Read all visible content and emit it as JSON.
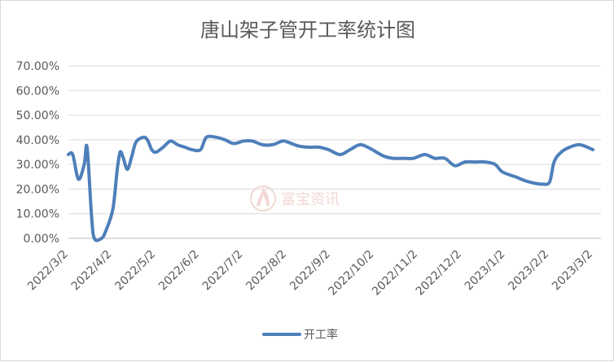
{
  "chart_data": {
    "type": "line",
    "title": "唐山架子管开工率统计图",
    "x_ticks": [
      "2022/3/2",
      "2022/4/2",
      "2022/5/2",
      "2022/6/2",
      "2022/7/2",
      "2022/8/2",
      "2022/9/2",
      "2022/10/2",
      "2022/11/2",
      "2022/12/2",
      "2023/1/2",
      "2023/2/2",
      "2023/3/2"
    ],
    "y_ticks": [
      "0.00%",
      "10.00%",
      "20.00%",
      "30.00%",
      "40.00%",
      "50.00%",
      "60.00%",
      "70.00%"
    ],
    "ylim": [
      0,
      70
    ],
    "y_unit": "percent",
    "grid": true,
    "legend_position": "bottom",
    "watermark": "富宝资讯",
    "series": [
      {
        "name": "开工率",
        "color": "#4e7fba",
        "points": [
          [
            "2022-03-02",
            34
          ],
          [
            "2022-03-05",
            34
          ],
          [
            "2022-03-09",
            24
          ],
          [
            "2022-03-13",
            30
          ],
          [
            "2022-03-15",
            37
          ],
          [
            "2022-03-18",
            10
          ],
          [
            "2022-03-20",
            0
          ],
          [
            "2022-03-25",
            0
          ],
          [
            "2022-03-28",
            3
          ],
          [
            "2022-04-02",
            12
          ],
          [
            "2022-04-05",
            28
          ],
          [
            "2022-04-07",
            35
          ],
          [
            "2022-04-09",
            33
          ],
          [
            "2022-04-12",
            28
          ],
          [
            "2022-04-15",
            33
          ],
          [
            "2022-04-18",
            39
          ],
          [
            "2022-04-23",
            41
          ],
          [
            "2022-04-26",
            40
          ],
          [
            "2022-04-29",
            36
          ],
          [
            "2022-05-02",
            35
          ],
          [
            "2022-05-07",
            37
          ],
          [
            "2022-05-12",
            39.5
          ],
          [
            "2022-05-17",
            38
          ],
          [
            "2022-05-22",
            37
          ],
          [
            "2022-05-27",
            36
          ],
          [
            "2022-06-02",
            36
          ],
          [
            "2022-06-06",
            41
          ],
          [
            "2022-06-13",
            41
          ],
          [
            "2022-06-19",
            40
          ],
          [
            "2022-06-25",
            38.5
          ],
          [
            "2022-07-02",
            39.5
          ],
          [
            "2022-07-08",
            39.5
          ],
          [
            "2022-07-15",
            38
          ],
          [
            "2022-07-22",
            38
          ],
          [
            "2022-07-29",
            39.5
          ],
          [
            "2022-08-02",
            39
          ],
          [
            "2022-08-09",
            37.5
          ],
          [
            "2022-08-16",
            37
          ],
          [
            "2022-08-23",
            37
          ],
          [
            "2022-08-30",
            36
          ],
          [
            "2022-09-07",
            34
          ],
          [
            "2022-09-14",
            36
          ],
          [
            "2022-09-21",
            38
          ],
          [
            "2022-09-28",
            36.5
          ],
          [
            "2022-10-07",
            33.5
          ],
          [
            "2022-10-14",
            32.5
          ],
          [
            "2022-10-21",
            32.5
          ],
          [
            "2022-10-28",
            32.5
          ],
          [
            "2022-11-05",
            34
          ],
          [
            "2022-11-12",
            32.5
          ],
          [
            "2022-11-19",
            32.5
          ],
          [
            "2022-11-26",
            29.5
          ],
          [
            "2022-12-03",
            31
          ],
          [
            "2022-12-10",
            31
          ],
          [
            "2022-12-17",
            31
          ],
          [
            "2022-12-24",
            30
          ],
          [
            "2022-12-29",
            27
          ],
          [
            "2023-01-07",
            25
          ],
          [
            "2023-01-16",
            23
          ],
          [
            "2023-01-26",
            22
          ],
          [
            "2023-01-31",
            23
          ],
          [
            "2023-02-03",
            31
          ],
          [
            "2023-02-08",
            35
          ],
          [
            "2023-02-14",
            37
          ],
          [
            "2023-02-21",
            38
          ],
          [
            "2023-03-02",
            36
          ]
        ]
      }
    ]
  }
}
